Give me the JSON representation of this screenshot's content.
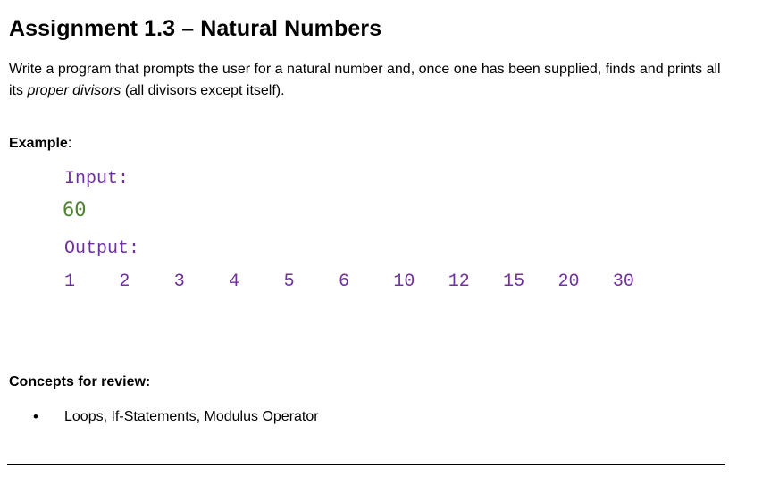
{
  "document": {
    "title": "Assignment 1.3 – Natural Numbers",
    "intro": {
      "before_italic": "Write a program that prompts the user for a natural number and, once one has been supplied, finds and prints all its ",
      "italic": "proper divisors",
      "after_italic": " (all divisors except itself)."
    },
    "example": {
      "label": "Example",
      "colon": ":",
      "input_label": "Input:",
      "input_value": "60",
      "output_label": "Output:",
      "output_values": [
        "1",
        "2",
        "3",
        "4",
        "5",
        "6",
        "10",
        "12",
        "15",
        "20",
        "30"
      ]
    },
    "concepts": {
      "heading": "Concepts for review:",
      "bullet_glyph": "•",
      "items": [
        "Loops, If-Statements, Modulus Operator"
      ]
    },
    "colors": {
      "code_purple": "#7030A0",
      "input_green": "#538135",
      "text": "#000000",
      "rule": "#000000"
    }
  }
}
